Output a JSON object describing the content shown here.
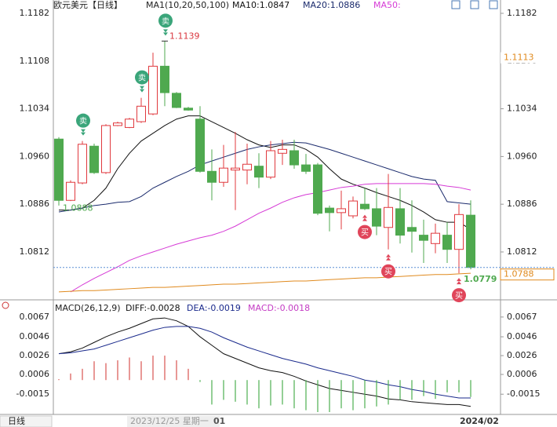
{
  "chart_data": [
    {
      "type": "candlestick",
      "title": "欧元美元【日线】",
      "indicator": "MA1(10,20,50,100)",
      "categories": [
        null,
        null,
        null,
        null,
        null,
        null,
        null,
        null,
        null,
        null,
        null,
        null,
        null,
        null,
        null,
        null,
        null,
        null,
        null,
        null,
        null,
        null,
        null,
        null,
        null,
        null,
        null,
        null,
        null,
        null,
        null,
        null,
        null,
        null,
        null,
        null
      ],
      "open": [
        1.0987,
        1.0892,
        1.0919,
        1.0976,
        1.0935,
        1.1008,
        1.1005,
        1.1014,
        1.1026,
        1.11,
        1.1058,
        1.1035,
        1.1018,
        1.0937,
        1.092,
        1.0939,
        1.0939,
        1.0945,
        1.0928,
        1.0965,
        1.0969,
        1.0947,
        1.0947,
        1.088,
        1.0873,
        1.0868,
        1.0886,
        1.0879,
        1.085,
        1.0879,
        1.085,
        1.0838,
        1.0825,
        1.0838,
        1.0816,
        1.0869
      ],
      "high": [
        1.099,
        1.0923,
        1.0984,
        1.098,
        1.101,
        1.1014,
        1.102,
        1.1051,
        1.1121,
        1.1139,
        1.106,
        1.1037,
        1.1038,
        1.0971,
        1.0978,
        1.0998,
        1.098,
        1.0965,
        1.0984,
        1.0986,
        1.0986,
        1.0964,
        1.095,
        1.0884,
        1.0907,
        1.0898,
        1.0911,
        1.0911,
        1.0933,
        1.0911,
        1.0892,
        1.0862,
        1.0856,
        1.0858,
        1.0886,
        1.0892
      ],
      "low": [
        1.0884,
        1.0891,
        1.0917,
        1.0933,
        1.0933,
        1.1007,
        1.1004,
        1.1012,
        1.1024,
        1.1038,
        1.1035,
        1.1031,
        1.0935,
        1.0892,
        1.0913,
        1.0877,
        1.0917,
        1.0911,
        1.0925,
        1.0947,
        1.0941,
        1.0933,
        1.0869,
        1.0844,
        1.0847,
        1.0864,
        1.0877,
        1.0838,
        1.0816,
        1.0825,
        1.0811,
        1.0795,
        1.081,
        1.0795,
        1.0779,
        1.0785
      ],
      "close": [
        1.0892,
        1.092,
        1.0979,
        1.0935,
        1.1008,
        1.1012,
        1.1018,
        1.1038,
        1.11,
        1.1059,
        1.1036,
        1.1032,
        1.0937,
        1.092,
        1.0942,
        1.0942,
        1.0948,
        1.0928,
        1.0969,
        1.0971,
        1.0947,
        1.0937,
        1.0872,
        1.0873,
        1.0879,
        1.0891,
        1.0879,
        1.0852,
        1.0881,
        1.0838,
        1.0844,
        1.083,
        1.0841,
        1.0816,
        1.087,
        1.0788
      ],
      "up_color": "#e0393e",
      "down_color": "#4fa94f",
      "series": [
        {
          "name": "MA10:1.0847",
          "color": "#111111",
          "values": [
            1.0877,
            1.0877,
            1.088,
            1.0892,
            1.0911,
            1.0941,
            1.0965,
            1.0984,
            1.0996,
            1.1008,
            1.1018,
            1.1023,
            1.1023,
            1.1014,
            1.1005,
            1.0996,
            1.0986,
            1.0978,
            1.0974,
            1.0978,
            1.0978,
            1.0971,
            1.0959,
            1.0941,
            1.0925,
            1.0917,
            1.0911,
            1.0904,
            1.0898,
            1.0892,
            1.0884,
            1.0874,
            1.0862,
            1.0858,
            1.0858,
            1.0847
          ]
        },
        {
          "name": "MA20:1.0886",
          "color": "#1a2a6c",
          "values": [
            1.0874,
            1.0877,
            1.088,
            1.0884,
            1.0886,
            1.0889,
            1.089,
            1.0898,
            1.0911,
            1.092,
            1.0929,
            1.0937,
            1.0947,
            1.0953,
            1.0959,
            1.0965,
            1.0971,
            1.0975,
            1.0978,
            1.098,
            1.0982,
            1.0981,
            1.0976,
            1.0971,
            1.0965,
            1.0959,
            1.0953,
            1.0947,
            1.0941,
            1.0935,
            1.0929,
            1.0925,
            1.0923,
            1.089,
            1.0888,
            1.0886
          ]
        },
        {
          "name": "MA50:",
          "color": "#d63bd6",
          "values": [
            null,
            1.075,
            1.0761,
            1.0771,
            1.078,
            1.0789,
            1.0799,
            1.0806,
            1.0812,
            1.0818,
            1.0824,
            1.0829,
            1.0834,
            1.0838,
            1.0844,
            1.0852,
            1.0862,
            1.0872,
            1.088,
            1.0889,
            1.0896,
            1.0901,
            1.0904,
            1.0908,
            1.0912,
            1.0914,
            1.0917,
            1.0918,
            1.0918,
            1.0918,
            1.0918,
            1.0918,
            1.0917,
            1.0914,
            1.0912,
            1.0908
          ]
        },
        {
          "color": "#e08a1e",
          "values": [
            1.075,
            1.0751,
            1.0752,
            1.0752,
            1.0753,
            1.0754,
            1.0755,
            1.0756,
            1.0757,
            1.0757,
            1.0758,
            1.0759,
            1.076,
            1.0761,
            1.0762,
            1.0762,
            1.0763,
            1.0764,
            1.0765,
            1.0766,
            1.0767,
            1.0767,
            1.0768,
            1.0769,
            1.077,
            1.0771,
            1.0772,
            1.0772,
            1.0773,
            1.0774,
            1.0775,
            1.0776,
            1.0777,
            1.0777,
            1.0778,
            1.0779
          ]
        }
      ],
      "ylim": [
        1.07426,
        1.11905
      ],
      "yticks": [
        1.1182,
        1.1108,
        1.1034,
        {
          "value": 1.096,
          "label": "1.0960"
        },
        1.0886,
        1.0812
      ],
      "annotations": {
        "high": 1.1139,
        "low": 1.0779,
        "start": 1.0888,
        "marker": 1.1113,
        "last": 1.0788
      },
      "sell_label": "卖",
      "buy_label": "买"
    },
    {
      "type": "macd",
      "title": "MACD(26,12,9)",
      "categories": [
        null,
        null,
        null,
        null,
        null,
        null,
        null,
        null,
        null,
        null,
        null,
        null,
        null,
        null,
        null,
        null,
        null,
        null,
        null,
        null,
        null,
        null,
        null,
        null,
        null,
        null,
        null,
        null,
        null,
        null,
        null,
        null,
        null,
        null,
        null,
        null
      ],
      "series": [
        {
          "name": "DIFF:-0.0028",
          "color": "#111111",
          "values": [
            0.0028,
            0.003,
            0.0034,
            0.004,
            0.0046,
            0.0051,
            0.0055,
            0.006,
            0.0065,
            0.0066,
            0.0063,
            0.0057,
            0.0046,
            0.0037,
            0.0028,
            0.0023,
            0.0018,
            0.0013,
            0.001,
            0.0008,
            0.0004,
            -0.0001,
            -0.0005,
            -0.0009,
            -0.0011,
            -0.0013,
            -0.0015,
            -0.0017,
            -0.002,
            -0.0021,
            -0.0023,
            -0.0024,
            -0.0025,
            -0.0026,
            -0.0026,
            -0.0028
          ]
        },
        {
          "name": "DEA:-0.0019",
          "color": "#1a2a8c",
          "values": [
            0.0028,
            0.0029,
            0.0031,
            0.0033,
            0.0037,
            0.0041,
            0.0045,
            0.0049,
            0.0053,
            0.0056,
            0.0057,
            0.0057,
            0.0055,
            0.0051,
            0.0045,
            0.004,
            0.0035,
            0.0031,
            0.0027,
            0.0023,
            0.002,
            0.0017,
            0.0013,
            0.001,
            0.0007,
            0.0004,
            0.0,
            -0.0002,
            -0.0005,
            -0.0007,
            -0.001,
            -0.0012,
            -0.0015,
            -0.0017,
            -0.0019,
            -0.0019
          ]
        },
        {
          "name": "MACD:-0.0018",
          "color": "#c43cc4",
          "histogram": true,
          "up_color": "#d9534f",
          "down_color": "#4caf50",
          "values": [
            0.0001,
            0.0007,
            0.0012,
            0.002,
            0.0018,
            0.0021,
            0.0024,
            0.002,
            0.0026,
            0.0026,
            0.0021,
            0.0012,
            -0.0002,
            -0.0026,
            -0.0021,
            -0.0023,
            -0.0026,
            -0.003,
            -0.0027,
            -0.0026,
            -0.003,
            -0.0032,
            -0.0034,
            -0.0034,
            -0.003,
            -0.0032,
            -0.003,
            -0.0028,
            -0.0026,
            -0.0021,
            -0.0021,
            -0.0017,
            -0.002,
            -0.0013,
            -0.0013,
            -0.0018
          ]
        }
      ],
      "ylim": [
        -0.00365,
        0.00744
      ],
      "yticks": [
        0.0067,
        0.0046,
        0.0026,
        0.0006,
        -0.0015
      ]
    }
  ],
  "period": "日线",
  "x_labels": [
    "2023/12/25 星期一",
    "01",
    "2024/02"
  ]
}
